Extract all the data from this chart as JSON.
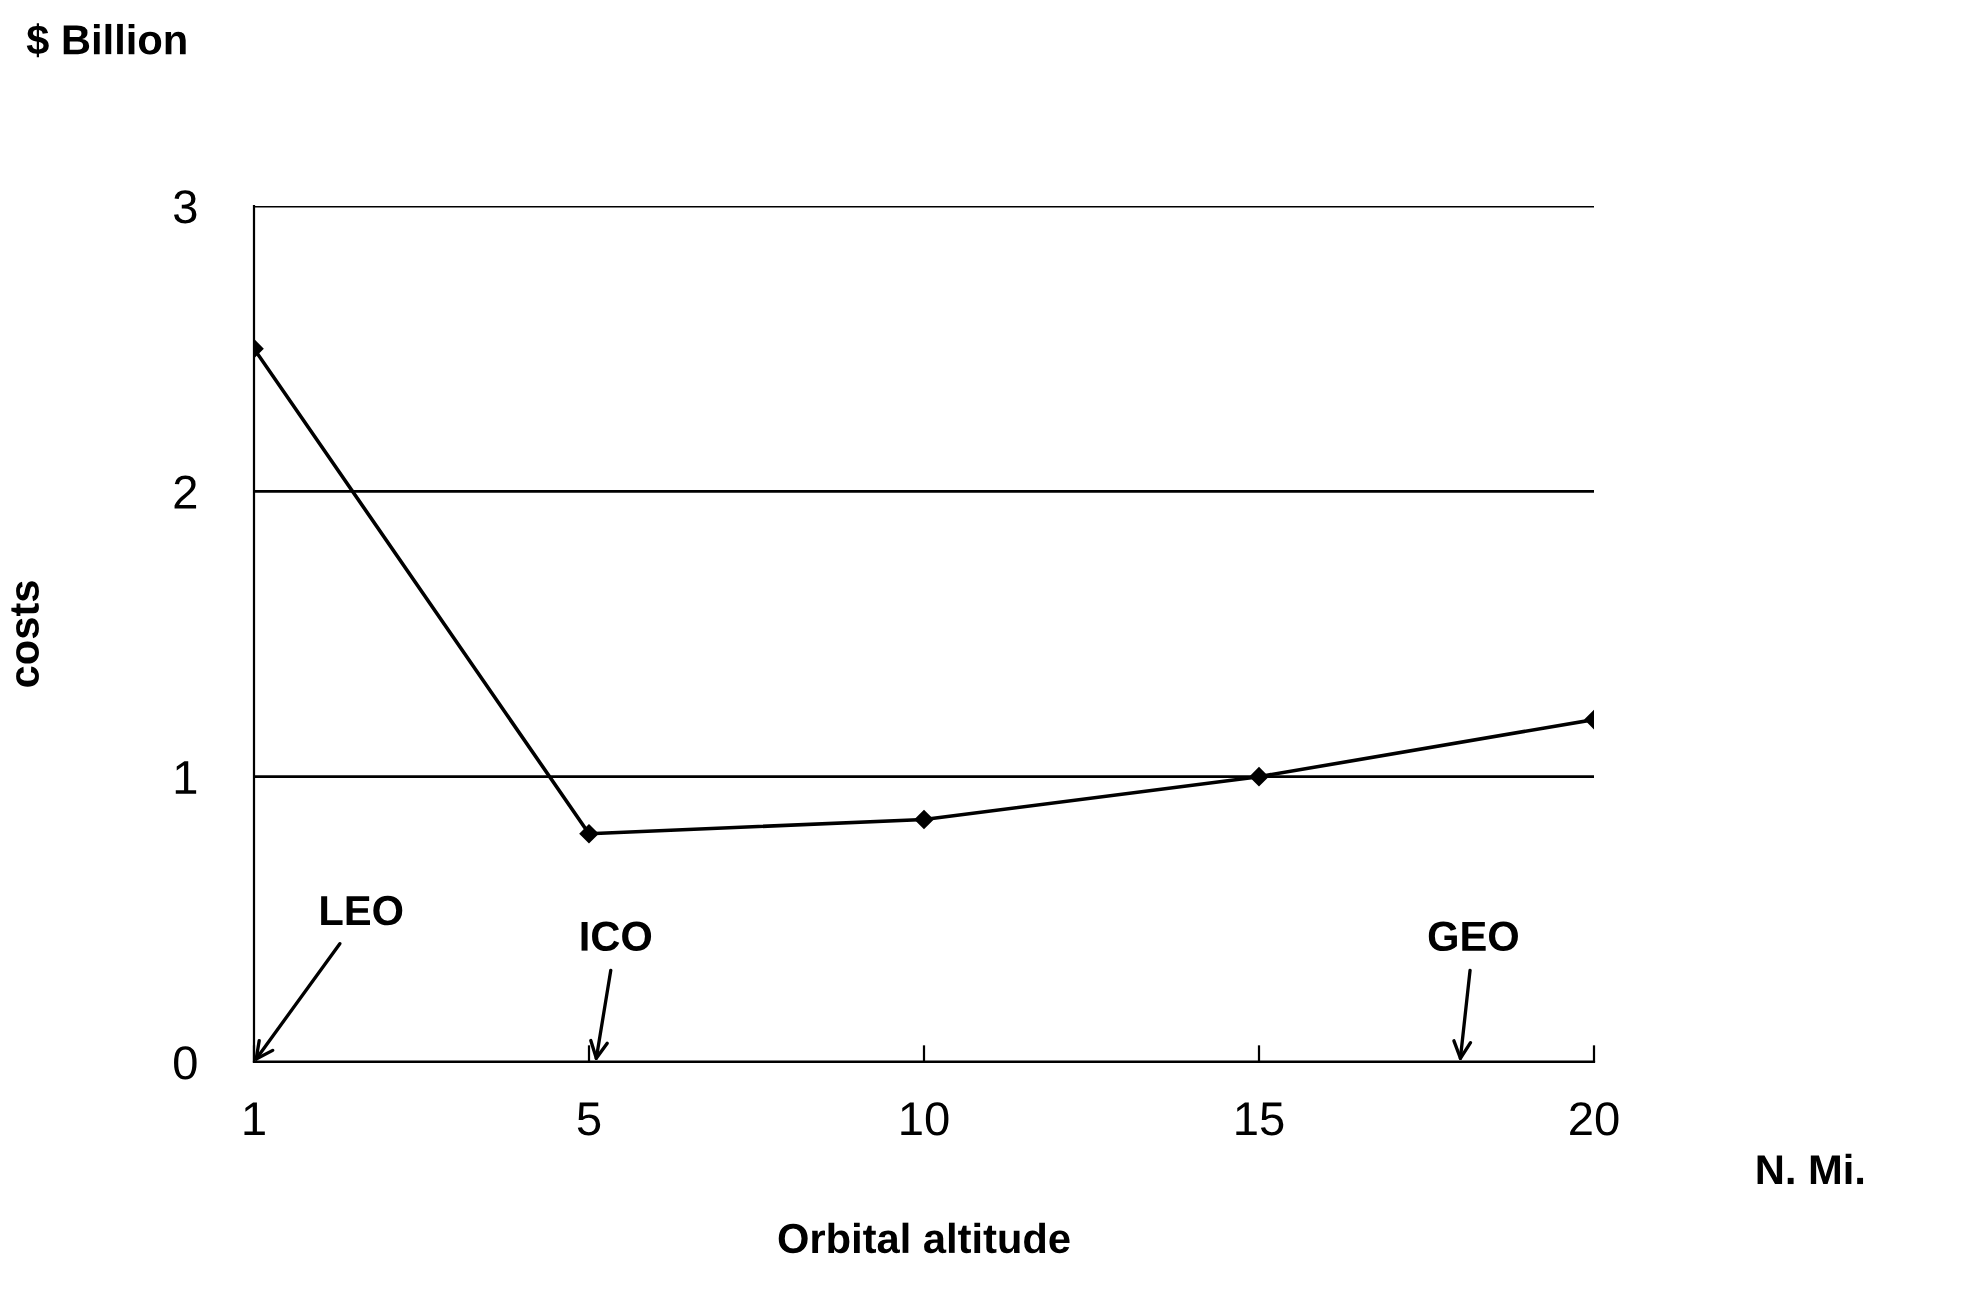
{
  "chart_data": {
    "type": "line",
    "categories": [
      "1",
      "5",
      "10",
      "15",
      "20"
    ],
    "values": [
      2.5,
      0.8,
      0.85,
      1.0,
      1.2
    ],
    "color": "#000000",
    "marker": "diamond",
    "line_style": "solid",
    "ylim": [
      0,
      3
    ],
    "yticks": [
      0,
      1,
      2,
      3
    ],
    "grid": "y",
    "xlabel": "Orbital altitude",
    "ylabel": "costs",
    "annotations": [
      "$ Billion",
      "N. Mi.",
      "LEO",
      "ICO",
      "GEO"
    ]
  }
}
